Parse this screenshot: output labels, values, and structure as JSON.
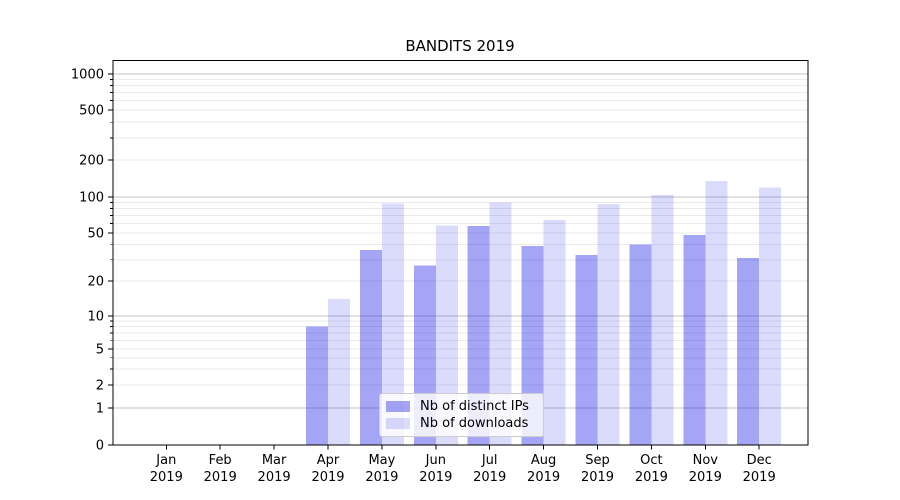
{
  "chart_data": {
    "type": "bar",
    "title": "BANDITS 2019",
    "categories": [
      "Jan",
      "Feb",
      "Mar",
      "Apr",
      "May",
      "Jun",
      "Jul",
      "Aug",
      "Sep",
      "Oct",
      "Nov",
      "Dec"
    ],
    "x_year": "2019",
    "series": [
      {
        "name": "Nb of distinct IPs",
        "color": "rgba(30,30,230,0.40)",
        "values": [
          0,
          0,
          0,
          8,
          36,
          27,
          57,
          39,
          33,
          40,
          48,
          31
        ]
      },
      {
        "name": "Nb of downloads",
        "color": "rgba(30,30,230,0.16)",
        "values": [
          0,
          0,
          0,
          14,
          88,
          58,
          90,
          64,
          87,
          104,
          135,
          120
        ]
      }
    ],
    "y_ticks": [
      0,
      1,
      2,
      5,
      10,
      20,
      50,
      100,
      200,
      500,
      1000
    ],
    "y_scale": "symlog",
    "ylim": [
      0,
      1300
    ],
    "xlabel": "",
    "ylabel": "",
    "grid": true,
    "legend_position": "lower center",
    "colors": {
      "bar_dark": "#a5a5f5",
      "bar_light": "#dbdbfa",
      "grid_major": "#c3c3c3",
      "grid_minor": "#eaeaea",
      "axis": "#000000",
      "background": "#ffffff"
    }
  }
}
